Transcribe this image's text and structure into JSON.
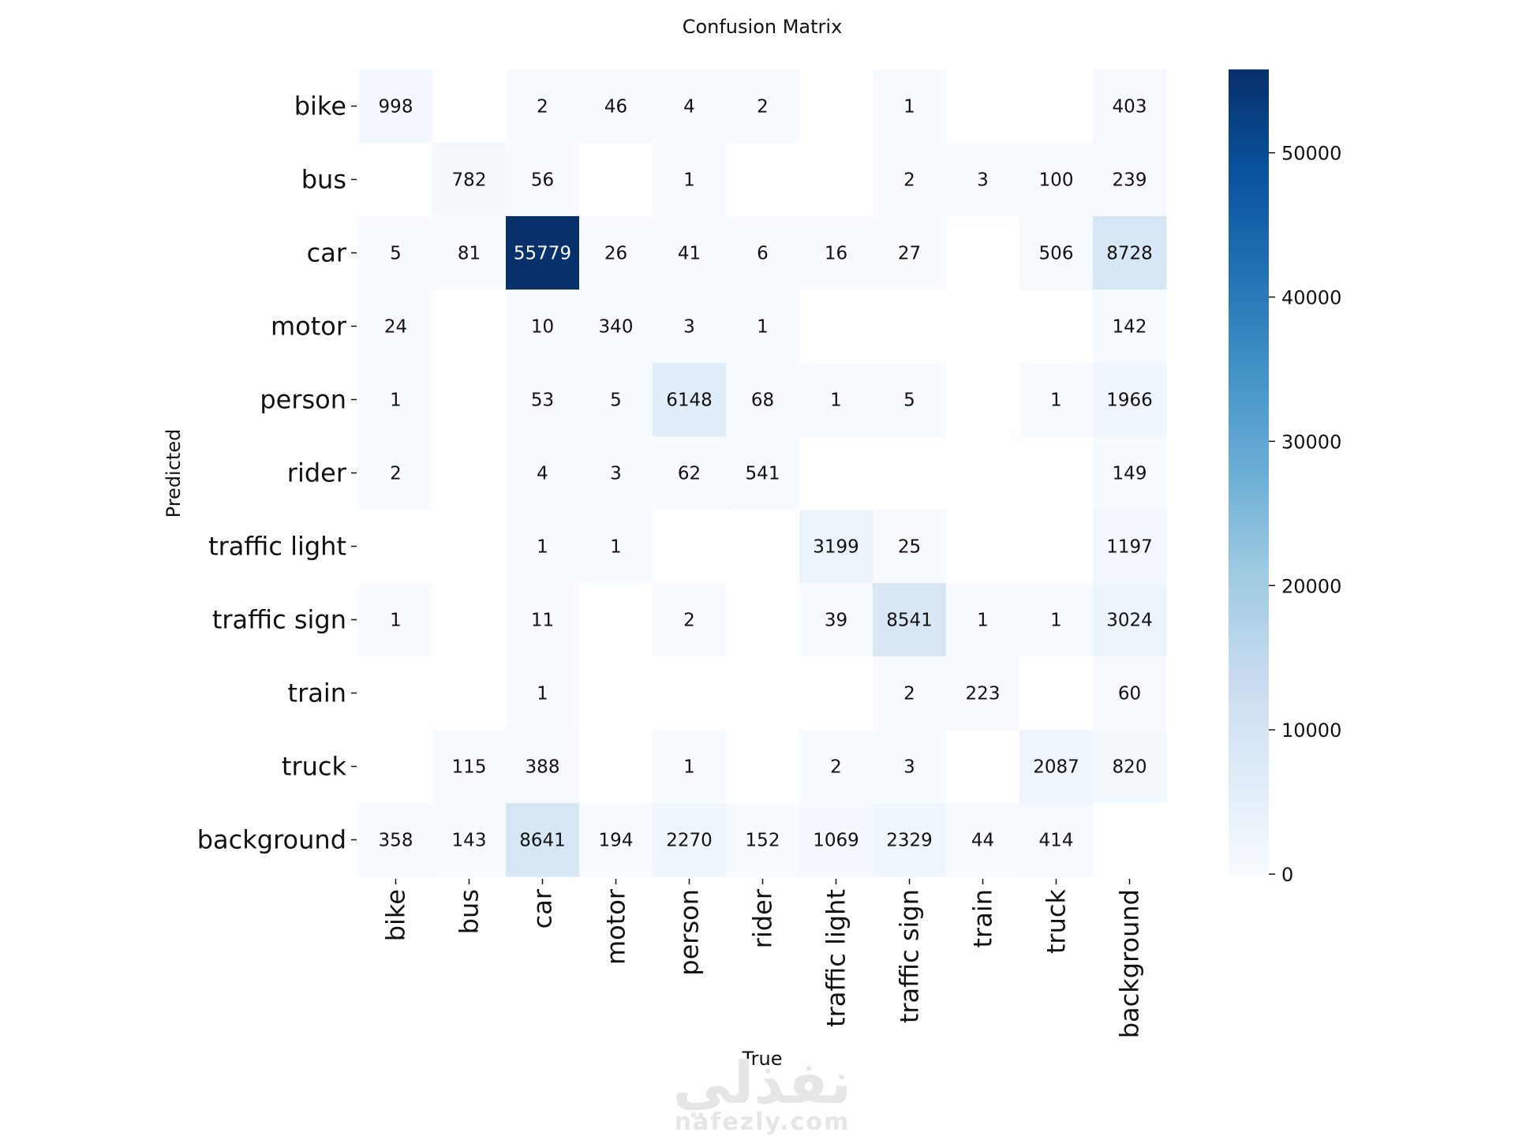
{
  "chart_data": {
    "type": "heatmap",
    "title": "Confusion Matrix",
    "xlabel": "True",
    "ylabel": "Predicted",
    "rows": [
      "bike",
      "bus",
      "car",
      "motor",
      "person",
      "rider",
      "traffic light",
      "traffic sign",
      "train",
      "truck",
      "background"
    ],
    "cols": [
      "bike",
      "bus",
      "car",
      "motor",
      "person",
      "rider",
      "traffic light",
      "traffic sign",
      "train",
      "truck",
      "background"
    ],
    "values": [
      [
        998,
        null,
        2,
        46,
        4,
        2,
        null,
        1,
        null,
        null,
        403
      ],
      [
        null,
        782,
        56,
        null,
        1,
        null,
        null,
        2,
        3,
        100,
        239
      ],
      [
        5,
        81,
        55779,
        26,
        41,
        6,
        16,
        27,
        null,
        506,
        8728
      ],
      [
        24,
        null,
        10,
        340,
        3,
        1,
        null,
        null,
        null,
        null,
        142
      ],
      [
        1,
        null,
        53,
        5,
        6148,
        68,
        1,
        5,
        null,
        1,
        1966
      ],
      [
        2,
        null,
        4,
        3,
        62,
        541,
        null,
        null,
        null,
        null,
        149
      ],
      [
        null,
        null,
        1,
        1,
        null,
        null,
        3199,
        25,
        null,
        null,
        1197
      ],
      [
        1,
        null,
        11,
        null,
        2,
        null,
        39,
        8541,
        1,
        1,
        3024
      ],
      [
        null,
        null,
        1,
        null,
        null,
        null,
        null,
        2,
        223,
        null,
        60
      ],
      [
        null,
        115,
        388,
        null,
        1,
        null,
        2,
        3,
        null,
        2087,
        820
      ],
      [
        358,
        143,
        8641,
        194,
        2270,
        152,
        1069,
        2329,
        44,
        414,
        null
      ]
    ],
    "colorscale": "Blues",
    "color_low": "#f7fbff",
    "color_high": "#08306b",
    "vmin": 0,
    "vmax": 55779,
    "colorbar_ticks": [
      0,
      10000,
      20000,
      30000,
      40000,
      50000
    ],
    "grid": false
  },
  "watermark": {
    "arabic": "نفذلي",
    "latin": "nafezly.com"
  }
}
